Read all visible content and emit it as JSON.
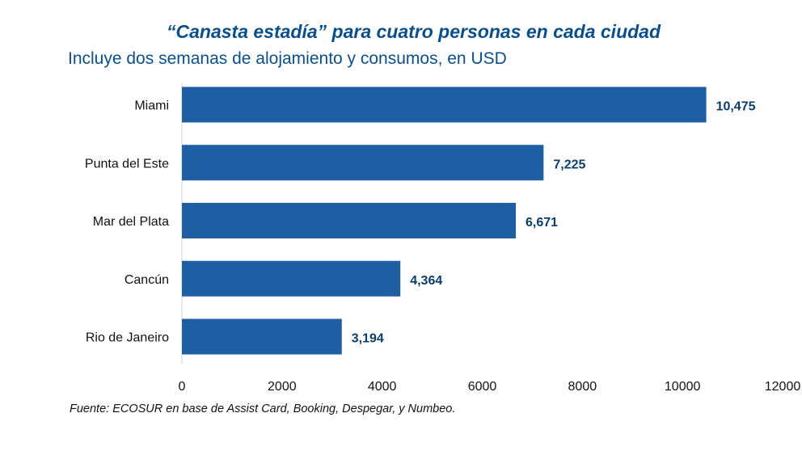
{
  "chart_data": {
    "type": "bar",
    "orientation": "horizontal",
    "title": "“Canasta estadía” para cuatro personas en cada ciudad",
    "subtitle": "Incluye dos semanas de alojamiento y consumos, en USD",
    "categories": [
      "Miami",
      "Punta del Este",
      "Mar del Plata",
      "Cancún",
      "Rio de Janeiro"
    ],
    "values": [
      10475,
      7225,
      6671,
      4364,
      3194
    ],
    "value_labels": [
      "10,475",
      "7,225",
      "6,671",
      "4,364",
      "3,194"
    ],
    "xlim": [
      0,
      12000
    ],
    "xticks": [
      0,
      2000,
      4000,
      6000,
      8000,
      10000,
      12000
    ],
    "xlabel": "",
    "ylabel": "",
    "grid": false,
    "legend": "none",
    "bar_color": "#1e5fa3"
  },
  "footer": {
    "source": "Fuente: ECOSUR en base de Assist Card, Booking, Despegar, y Numbeo."
  }
}
